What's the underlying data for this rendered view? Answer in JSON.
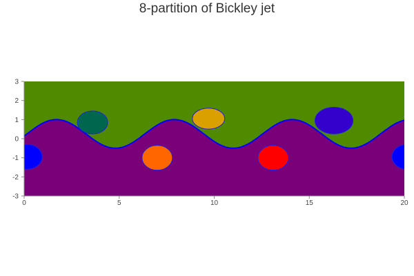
{
  "chart_data": {
    "type": "heatmap",
    "title": "8-partition of Bickley jet",
    "xlabel": "",
    "ylabel": "",
    "xlim": [
      0,
      20
    ],
    "ylim": [
      -3,
      3
    ],
    "x_ticks": [
      0,
      5,
      10,
      15,
      20
    ],
    "y_ticks": [
      3,
      2,
      1,
      0,
      -1,
      -2,
      -3
    ],
    "grid": false,
    "legend": "none",
    "boundary_color": "#0000ff",
    "background_regions": [
      {
        "name": "upper",
        "color": "#4f8a00",
        "wave": {
          "mean": 0.25,
          "amplitude": 0.75,
          "period": 6.2,
          "phase_x": 1.7
        }
      },
      {
        "name": "lower",
        "color": "#7a007a"
      }
    ],
    "vortices": [
      {
        "center": [
          3.6,
          0.85
        ],
        "rx": 0.8,
        "ry": 0.6,
        "color": "#00664d"
      },
      {
        "center": [
          9.7,
          1.05
        ],
        "rx": 0.85,
        "ry": 0.55,
        "color": "#d9a000"
      },
      {
        "center": [
          16.3,
          0.95
        ],
        "rx": 1.0,
        "ry": 0.7,
        "color": "#3300cc"
      },
      {
        "center": [
          7.0,
          -1.0
        ],
        "rx": 0.8,
        "ry": 0.65,
        "color": "#ff6600"
      },
      {
        "center": [
          13.1,
          -1.0
        ],
        "rx": 0.8,
        "ry": 0.65,
        "color": "#ff0000"
      },
      {
        "center": [
          0.15,
          -0.95
        ],
        "rx": 0.8,
        "ry": 0.65,
        "color": "#0000ff"
      },
      {
        "center": [
          20.15,
          -0.95
        ],
        "rx": 0.8,
        "ry": 0.65,
        "color": "#0000ff"
      }
    ]
  }
}
